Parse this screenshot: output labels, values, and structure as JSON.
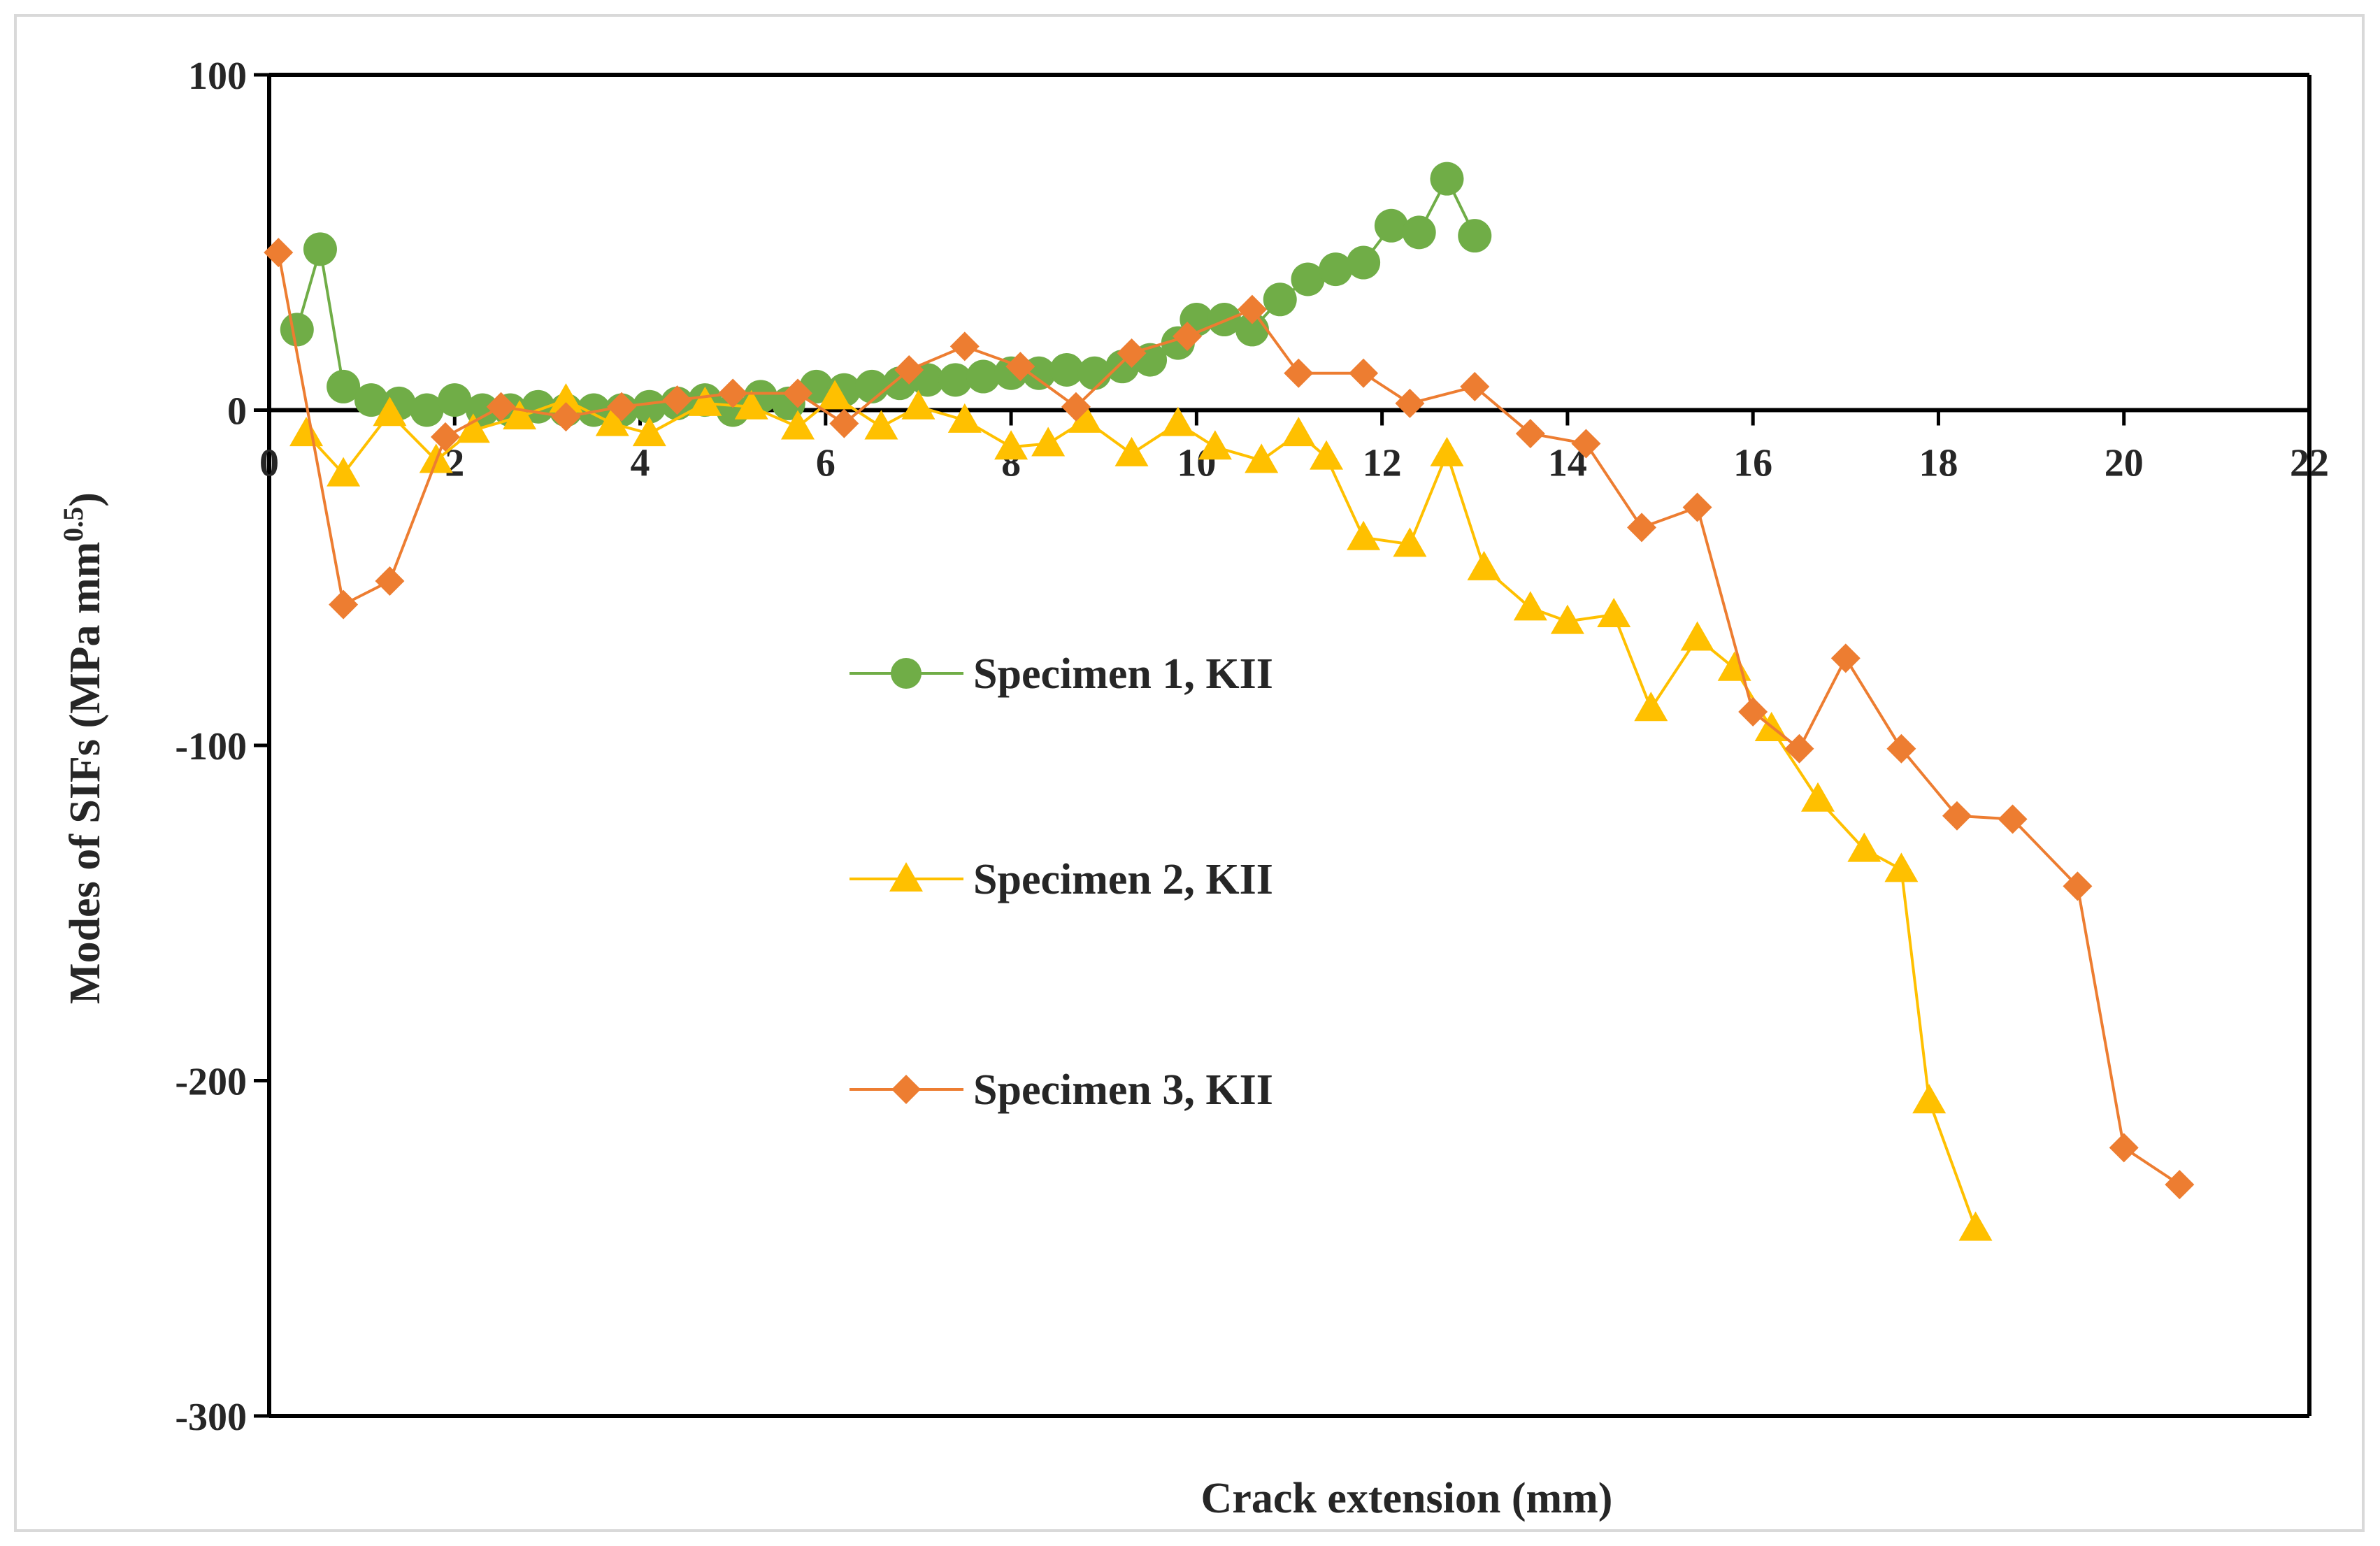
{
  "chart_data": {
    "type": "line",
    "title": "",
    "xlabel": "Crack extension (mm)",
    "ylabel_main": "Modes of SIFs (MPa mm",
    "ylabel_sup": "0.5",
    "ylabel_close": ")",
    "xlim": [
      0,
      22
    ],
    "ylim": [
      -300,
      100
    ],
    "xticks": [
      0,
      2,
      4,
      6,
      8,
      10,
      12,
      14,
      16,
      18,
      20,
      22
    ],
    "yticks": [
      -300,
      -200,
      -100,
      0,
      100
    ],
    "grid": false,
    "legend_position": "center",
    "series": [
      {
        "name": "Specimen 1, KII",
        "color": "#70ad47",
        "marker": "circle",
        "x": [
          0.3,
          0.55,
          0.8,
          1.1,
          1.4,
          1.7,
          2.0,
          2.3,
          2.6,
          2.9,
          3.2,
          3.5,
          3.8,
          4.1,
          4.4,
          4.7,
          5.0,
          5.3,
          5.6,
          5.9,
          6.2,
          6.5,
          6.8,
          7.1,
          7.4,
          7.7,
          8.0,
          8.3,
          8.6,
          8.9,
          9.2,
          9.5,
          9.8,
          10.0,
          10.3,
          10.6,
          10.9,
          11.2,
          11.5,
          11.8,
          12.1,
          12.4,
          12.7,
          13.0
        ],
        "values": [
          24,
          48,
          7,
          3,
          2,
          0,
          3,
          0,
          0,
          1,
          0,
          0,
          0,
          1,
          2,
          3,
          0,
          4,
          2,
          7,
          6,
          7,
          8,
          9,
          9,
          10,
          11,
          11,
          12,
          11,
          13,
          15,
          20,
          27,
          27,
          24,
          33,
          39,
          42,
          44,
          55,
          53,
          69,
          52
        ]
      },
      {
        "name": "Specimen 2, KII",
        "color": "#ffc000",
        "marker": "triangle",
        "x": [
          0.4,
          0.8,
          1.3,
          1.8,
          2.2,
          2.7,
          3.2,
          3.7,
          4.1,
          4.7,
          5.2,
          5.7,
          6.1,
          6.6,
          7.0,
          7.5,
          8.0,
          8.4,
          8.8,
          9.3,
          9.8,
          10.2,
          10.7,
          11.1,
          11.4,
          11.8,
          12.3,
          12.7,
          13.1,
          13.6,
          14.0,
          14.5,
          14.9,
          15.4,
          15.8,
          16.2,
          16.7,
          17.2,
          17.6,
          17.9,
          18.4
        ],
        "values": [
          -7,
          -19,
          -1,
          -15,
          -6,
          -2,
          3,
          -4,
          -7,
          2,
          1,
          -5,
          4,
          -5,
          1,
          -3,
          -11,
          -10,
          -3,
          -13,
          -4,
          -11,
          -15,
          -7,
          -14,
          -38,
          -40,
          -13,
          -47,
          -59,
          -63,
          -61,
          -89,
          -68,
          -77,
          -95,
          -116,
          -131,
          -137,
          -206,
          -244
        ]
      },
      {
        "name": "Specimen 3, KII",
        "color": "#ed7d31",
        "marker": "diamond",
        "x": [
          0.1,
          0.8,
          1.3,
          1.9,
          2.5,
          3.2,
          3.8,
          4.4,
          5.0,
          5.7,
          6.2,
          6.9,
          7.5,
          8.1,
          8.7,
          9.3,
          9.9,
          10.6,
          11.1,
          11.8,
          12.3,
          13.0,
          13.6,
          14.2,
          14.8,
          15.4,
          16.0,
          16.5,
          17.0,
          17.6,
          18.2,
          18.8,
          19.5,
          20.0,
          20.6
        ],
        "values": [
          47,
          -58,
          -51,
          -8,
          1,
          -2,
          1,
          3,
          5,
          5,
          -4,
          12,
          19,
          13,
          1,
          17,
          22,
          30,
          11,
          11,
          2,
          7,
          -7,
          -10,
          -35,
          -29,
          -90,
          -101,
          -74,
          -101,
          -121,
          -122,
          -142,
          -220,
          -231
        ]
      }
    ]
  }
}
